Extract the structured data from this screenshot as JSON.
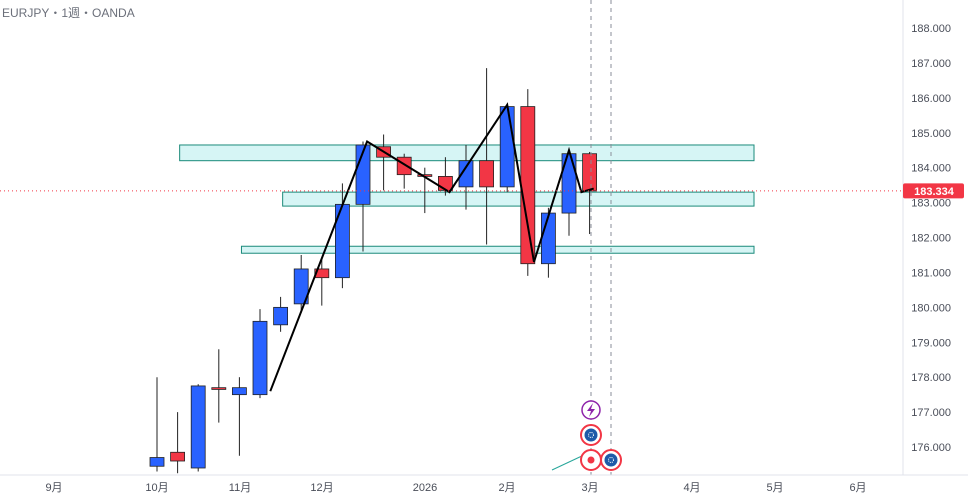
{
  "header": {
    "symbol": "EURJPY・1週・OANDA"
  },
  "price_label": "183.334",
  "colors": {
    "up": "#2962ff",
    "down": "#f23645",
    "zone_fill": "#d6f5f5",
    "zone_stroke": "#1a8a7a",
    "price_line": "#f23645"
  },
  "chart_data": {
    "type": "candlestick",
    "title": "EURJPY・1週・OANDA",
    "ylim": [
      175.2,
      188.75
    ],
    "y_ticks": [
      "176.000",
      "177.000",
      "178.000",
      "179.000",
      "180.000",
      "181.000",
      "182.000",
      "183.000",
      "184.000",
      "185.000",
      "186.000",
      "187.000",
      "188.000"
    ],
    "x_ticks": [
      "9月",
      "10月",
      "11月",
      "12月",
      "2026",
      "2月",
      "3月",
      "4月",
      "5月",
      "6月"
    ],
    "last_price": 183.334,
    "candles": [
      {
        "i": 0,
        "o": 175.45,
        "h": 178.0,
        "l": 175.3,
        "c": 175.7
      },
      {
        "i": 1,
        "o": 175.85,
        "h": 177.0,
        "l": 175.25,
        "c": 175.6
      },
      {
        "i": 2,
        "o": 175.4,
        "h": 177.8,
        "l": 175.3,
        "c": 177.75
      },
      {
        "i": 3,
        "o": 177.7,
        "h": 178.8,
        "l": 176.7,
        "c": 177.65
      },
      {
        "i": 4,
        "o": 177.5,
        "h": 178.0,
        "l": 175.75,
        "c": 177.7
      },
      {
        "i": 5,
        "o": 177.5,
        "h": 179.95,
        "l": 177.4,
        "c": 179.6
      },
      {
        "i": 6,
        "o": 179.5,
        "h": 180.3,
        "l": 179.3,
        "c": 180.0
      },
      {
        "i": 7,
        "o": 180.1,
        "h": 181.5,
        "l": 179.85,
        "c": 181.1
      },
      {
        "i": 8,
        "o": 181.1,
        "h": 181.4,
        "l": 180.05,
        "c": 180.85
      },
      {
        "i": 9,
        "o": 180.85,
        "h": 183.55,
        "l": 180.55,
        "c": 182.95
      },
      {
        "i": 10,
        "o": 182.95,
        "h": 184.75,
        "l": 181.6,
        "c": 184.65
      },
      {
        "i": 11,
        "o": 184.6,
        "h": 184.95,
        "l": 183.35,
        "c": 184.3
      },
      {
        "i": 12,
        "o": 184.3,
        "h": 184.4,
        "l": 183.4,
        "c": 183.8
      },
      {
        "i": 13,
        "o": 183.8,
        "h": 184.0,
        "l": 182.7,
        "c": 183.75
      },
      {
        "i": 14,
        "o": 183.75,
        "h": 184.3,
        "l": 183.2,
        "c": 183.35
      },
      {
        "i": 15,
        "o": 183.45,
        "h": 184.65,
        "l": 182.8,
        "c": 184.2
      },
      {
        "i": 16,
        "o": 184.2,
        "h": 186.85,
        "l": 181.8,
        "c": 183.45
      },
      {
        "i": 17,
        "o": 183.45,
        "h": 185.8,
        "l": 183.3,
        "c": 185.75
      },
      {
        "i": 18,
        "o": 185.75,
        "h": 186.25,
        "l": 180.9,
        "c": 181.25
      },
      {
        "i": 19,
        "o": 181.25,
        "h": 182.85,
        "l": 180.85,
        "c": 182.7
      },
      {
        "i": 20,
        "o": 182.7,
        "h": 184.5,
        "l": 182.05,
        "c": 184.4
      },
      {
        "i": 21,
        "o": 184.4,
        "h": 184.45,
        "l": 182.1,
        "c": 183.334
      }
    ],
    "zones": [
      {
        "top": 184.65,
        "bottom": 184.2,
        "start_index": 1.1,
        "end_index": 29
      },
      {
        "top": 183.3,
        "bottom": 182.9,
        "start_index": 6.1,
        "end_index": 29
      },
      {
        "top": 181.75,
        "bottom": 181.55,
        "start_index": 4.1,
        "end_index": 29
      }
    ],
    "zigzag": [
      {
        "i": 5.5,
        "p": 177.6
      },
      {
        "i": 10.2,
        "p": 184.75
      },
      {
        "i": 14.2,
        "p": 183.3
      },
      {
        "i": 17.0,
        "p": 185.8
      },
      {
        "i": 18.3,
        "p": 181.3
      },
      {
        "i": 20.0,
        "p": 184.5
      },
      {
        "i": 20.6,
        "p": 183.3
      },
      {
        "i": 21.2,
        "p": 183.4
      }
    ]
  }
}
